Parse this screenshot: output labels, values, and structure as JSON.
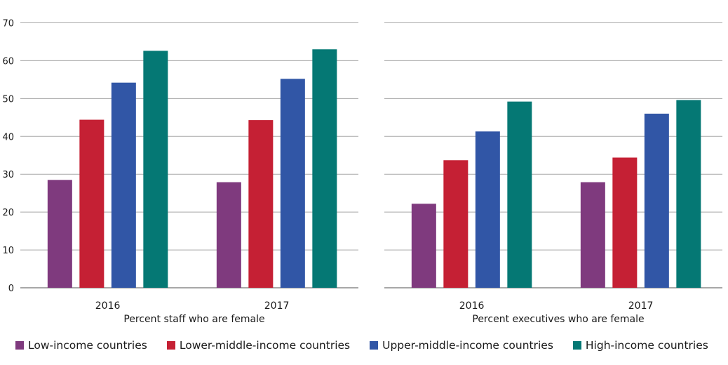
{
  "chart_data": [
    {
      "type": "bar",
      "xlabel": "Percent staff who are female",
      "categories": [
        "2016",
        "2017"
      ],
      "ylim": [
        0,
        70
      ],
      "yticks": [
        0,
        10,
        20,
        30,
        40,
        50,
        60,
        70
      ],
      "grid": true,
      "series": [
        {
          "name": "Low-income countries",
          "values": [
            28.5,
            27.9
          ]
        },
        {
          "name": "Lower-middle-income countries",
          "values": [
            44.4,
            44.3
          ]
        },
        {
          "name": "Upper-middle-income countries",
          "values": [
            54.2,
            55.2
          ]
        },
        {
          "name": "High-income countries",
          "values": [
            62.6,
            63.0
          ]
        }
      ]
    },
    {
      "type": "bar",
      "xlabel": "Percent executives who are female",
      "categories": [
        "2016",
        "2017"
      ],
      "ylim": [
        0,
        70
      ],
      "grid": true,
      "series": [
        {
          "name": "Low-income countries",
          "values": [
            22.2,
            27.9
          ]
        },
        {
          "name": "Lower-middle-income countries",
          "values": [
            33.7,
            34.4
          ]
        },
        {
          "name": "Upper-middle-income countries",
          "values": [
            41.3,
            46.0
          ]
        },
        {
          "name": "High-income countries",
          "values": [
            49.2,
            49.6
          ]
        }
      ]
    }
  ],
  "legend": {
    "placement": "bottom",
    "items": [
      {
        "label": "Low-income countries",
        "color": "#7f3a7e"
      },
      {
        "label": "Lower-middle-income countries",
        "color": "#c52034"
      },
      {
        "label": "Upper-middle-income countries",
        "color": "#3156a6"
      },
      {
        "label": "High-income countries",
        "color": "#057874"
      }
    ]
  }
}
